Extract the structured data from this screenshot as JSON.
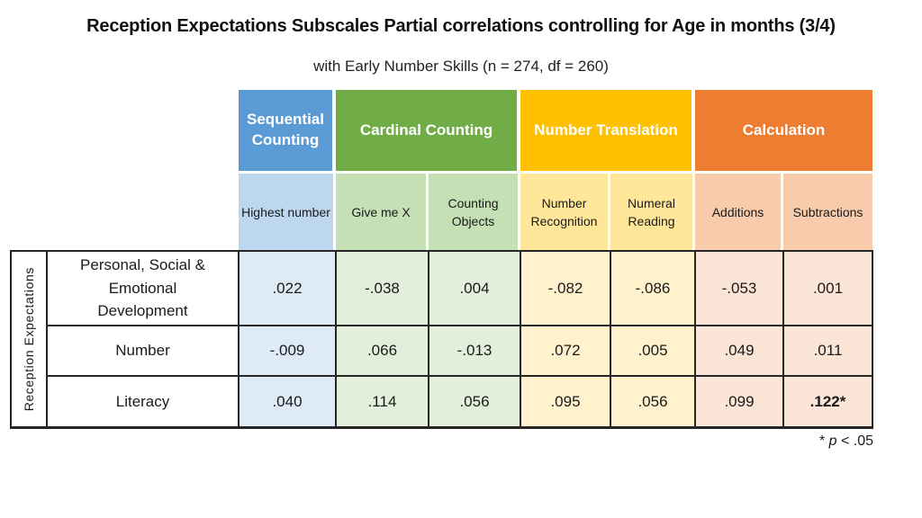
{
  "slide": {
    "title": "Reception Expectations Subscales Partial correlations controlling for Age in months (3/4)",
    "subtitle": "with Early Number Skills (n = 274, df = 260)",
    "footnote": {
      "star": "* ",
      "var": "p",
      "rest": " < .05"
    }
  },
  "table": {
    "side_label": "Reception Expectations",
    "column_groups": [
      {
        "label": "Sequential Counting",
        "color": "#5B9BD5",
        "columns": [
          "Highest number"
        ]
      },
      {
        "label": "Cardinal Counting",
        "color": "#70AD47",
        "columns": [
          "Give me X",
          "Counting Objects"
        ]
      },
      {
        "label": "Number Translation",
        "color": "#FFC000",
        "columns": [
          "Number Recognition",
          "Numeral Reading"
        ]
      },
      {
        "label": "Calculation",
        "color": "#ED7D31",
        "columns": [
          "Additions",
          "Subtractions"
        ]
      }
    ],
    "rows": [
      {
        "label": "Personal, Social & Emotional Development",
        "values": [
          ".022",
          "-.038",
          ".004",
          "-.082",
          "-.086",
          "-.053",
          ".001"
        ]
      },
      {
        "label": "Number",
        "values": [
          "-.009",
          ".066",
          "-.013",
          ".072",
          ".005",
          ".049",
          ".011"
        ]
      },
      {
        "label": "Literacy",
        "values": [
          ".040",
          ".114",
          ".056",
          ".095",
          ".056",
          ".099",
          ".122*"
        ]
      }
    ]
  },
  "colors": {
    "sequential_counting": "#5B9BD5",
    "cardinal_counting": "#70AD47",
    "number_translation": "#FFC000",
    "calculation": "#ED7D31",
    "sequential_counting_subheader": "#BDD7EE",
    "cardinal_counting_subheader": "#C5E0B4",
    "number_translation_subheader": "#FFE699",
    "calculation_subheader": "#F8CBAD",
    "sequential_counting_data": "#DEEBF7",
    "cardinal_counting_data": "#E2EFDA",
    "number_translation_data": "#FFF2CC",
    "calculation_data": "#FBE5D6",
    "grid_border": "#262626"
  },
  "chart_data": {
    "type": "table",
    "title": "Reception Expectations Subscales Partial correlations controlling for Age in months (3/4)",
    "subtitle": "with Early Number Skills (n = 274, df = 260)",
    "row_axis_label": "Reception Expectations",
    "column_groups": [
      "Sequential Counting",
      "Cardinal Counting",
      "Cardinal Counting",
      "Number Translation",
      "Number Translation",
      "Calculation",
      "Calculation"
    ],
    "columns": [
      "Highest number",
      "Give me X",
      "Counting Objects",
      "Number Recognition",
      "Numeral Reading",
      "Additions",
      "Subtractions"
    ],
    "rows": [
      {
        "label": "Personal, Social & Emotional Development",
        "values": [
          0.022,
          -0.038,
          0.004,
          -0.082,
          -0.086,
          -0.053,
          0.001
        ]
      },
      {
        "label": "Number",
        "values": [
          -0.009,
          0.066,
          -0.013,
          0.072,
          0.005,
          0.049,
          0.011
        ]
      },
      {
        "label": "Literacy",
        "values": [
          0.04,
          0.114,
          0.056,
          0.095,
          0.056,
          0.099,
          0.122
        ]
      }
    ],
    "significance_note": "* p < .05",
    "significant_cells": [
      {
        "row": "Literacy",
        "column": "Subtractions",
        "value": 0.122
      }
    ]
  }
}
